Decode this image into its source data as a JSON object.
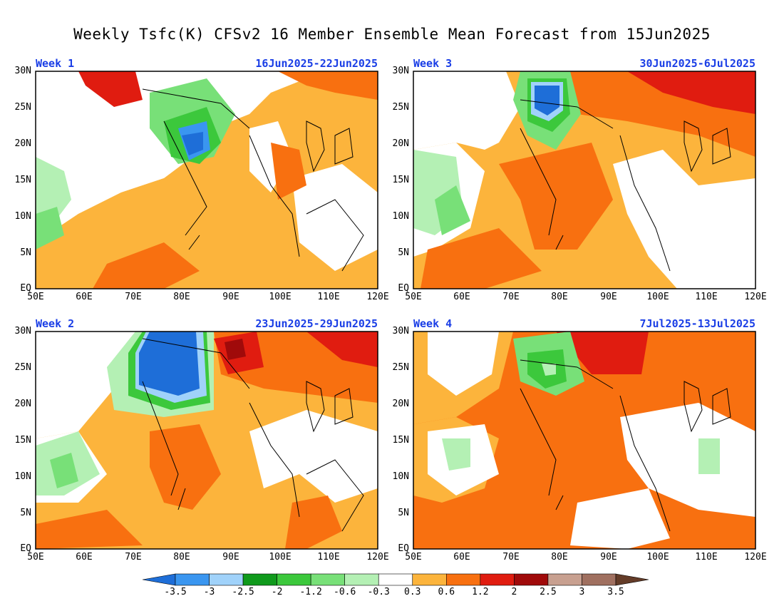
{
  "title": "Weekly Tsfc(K) CFSv2 16 Member Ensemble Mean Forecast from 15Jun2025",
  "panels": [
    {
      "week": "Week 1",
      "dates": "16Jun2025-22Jun2025"
    },
    {
      "week": "Week 3",
      "dates": "30Jun2025-6Jul2025"
    },
    {
      "week": "Week 2",
      "dates": "23Jun2025-29Jun2025"
    },
    {
      "week": "Week 4",
      "dates": "7Jul2025-13Jul2025"
    }
  ],
  "lat_ticks": [
    "30N",
    "25N",
    "20N",
    "15N",
    "10N",
    "5N",
    "EQ"
  ],
  "lon_ticks": [
    "50E",
    "60E",
    "70E",
    "80E",
    "90E",
    "100E",
    "110E",
    "120E"
  ],
  "colorbar": {
    "colors": [
      "#1e6ed8",
      "#3a96f0",
      "#a0d2fa",
      "#109a1c",
      "#3cc83c",
      "#78e078",
      "#b4f0b4",
      "#ffffff",
      "#fcb43c",
      "#f87010",
      "#e01c10",
      "#a00a0a",
      "#c8a090",
      "#a07060",
      "#643c28"
    ],
    "labels": [
      "-3.5",
      "-3",
      "-2.5",
      "-2",
      "-1.2",
      "-0.6",
      "-0.3",
      "0.3",
      "0.6",
      "1.2",
      "2",
      "2.5",
      "3",
      "3.5"
    ]
  }
}
